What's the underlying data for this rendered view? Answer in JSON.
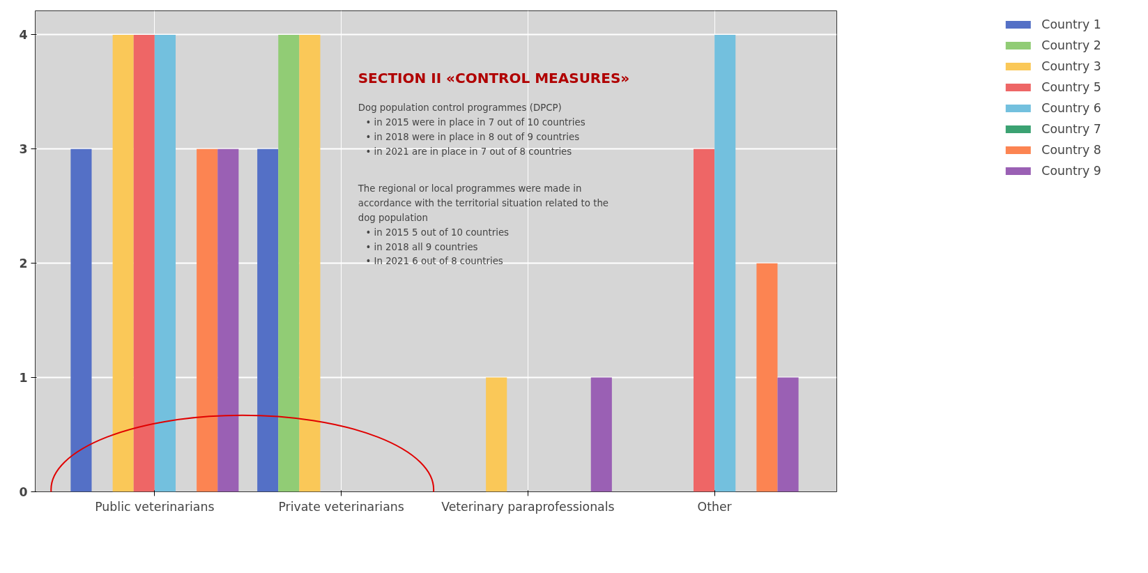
{
  "chart_data": {
    "type": "bar",
    "categories": [
      "Public veterinarians",
      "Private veterinarians",
      "Veterinary paraprofessionals",
      "Other"
    ],
    "series": [
      {
        "name": "Country 1",
        "color": "#5470c6",
        "values": [
          3,
          3,
          null,
          null
        ]
      },
      {
        "name": "Country 2",
        "color": "#91cc75",
        "values": [
          0,
          4,
          0,
          0
        ]
      },
      {
        "name": "Country 3",
        "color": "#fac858",
        "values": [
          4,
          4,
          1,
          0
        ]
      },
      {
        "name": "Country 5",
        "color": "#ee6666",
        "values": [
          4,
          null,
          null,
          3
        ]
      },
      {
        "name": "Country 6",
        "color": "#73c0de",
        "values": [
          4,
          null,
          0,
          4
        ]
      },
      {
        "name": "Country 7",
        "color": "#3ba272",
        "values": [
          0,
          null,
          null,
          0
        ]
      },
      {
        "name": "Country 8",
        "color": "#fc8452",
        "values": [
          3,
          null,
          null,
          2
        ]
      },
      {
        "name": "Country 9",
        "color": "#9a60b4",
        "values": [
          3,
          null,
          1,
          1
        ]
      }
    ],
    "ylim": [
      0,
      4.21
    ],
    "yticks": [
      0,
      1,
      2,
      3,
      4
    ],
    "grid": true,
    "legend": "top right",
    "annotations": [
      "SECTION II «CONTROL MEASURES»",
      "Dog population control programmes (DPCP)",
      "• in 2015 were in place in 7 out of 10 countries",
      "• in 2018 were in place in  8 out of 9 countries",
      "• in 2021 are in place in 7 out of 8 countries",
      "The regional or local programmes were made in",
      "accordance with the territorial situation related to the",
      "dog population",
      "• in 2015  5 out of 10 countries",
      "• in 2018 all 9 countries",
      "• In 2021 6 out of 8 countries"
    ]
  }
}
